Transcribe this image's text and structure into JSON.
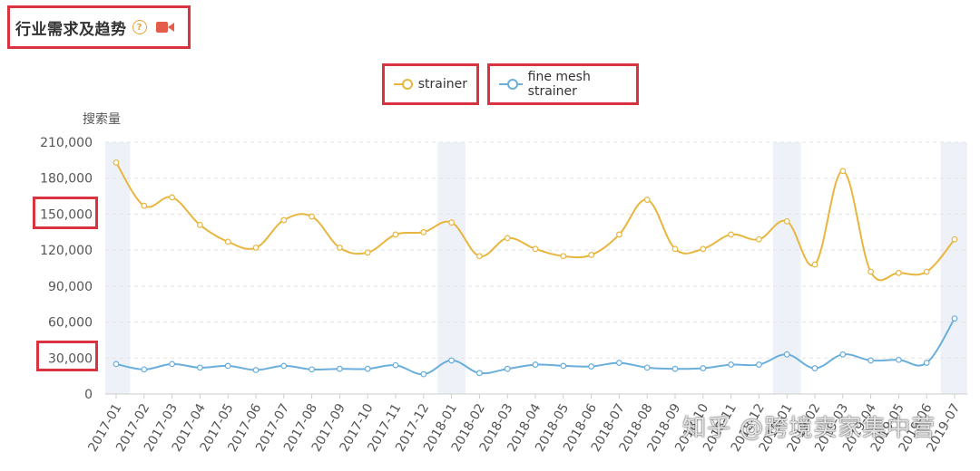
{
  "header": {
    "title": "行业需求及趋势",
    "help_icon": "question-circle-icon",
    "video_icon": "video-camera-icon"
  },
  "watermark": "知乎 @跨境卖家集中营",
  "chart_data": {
    "type": "line",
    "ylabel": "搜索量",
    "ylim": [
      0,
      210000
    ],
    "yticks": [
      "210,000",
      "180,000",
      "150,000",
      "120,000",
      "90,000",
      "60,000",
      "30,000",
      "0"
    ],
    "legend_position": "top-center",
    "grid": true,
    "categories": [
      "2017-01",
      "2017-02",
      "2017-03",
      "2017-04",
      "2017-05",
      "2017-06",
      "2017-07",
      "2017-08",
      "2017-09",
      "2017-10",
      "2017-11",
      "2017-12",
      "2018-01",
      "2018-02",
      "2018-03",
      "2018-04",
      "2018-05",
      "2018-06",
      "2018-07",
      "2018-08",
      "2018-09",
      "2018-10",
      "2018-11",
      "2018-12",
      "2019-01",
      "2019-02",
      "2019-03",
      "2019-04",
      "2019-05",
      "2019-06",
      "2019-07"
    ],
    "shaded_categories": [
      0,
      12,
      24,
      30
    ],
    "series": [
      {
        "name": "strainer",
        "color": "#e8b63e",
        "values": [
          193000,
          157000,
          164000,
          141000,
          127000,
          122000,
          145000,
          148000,
          122000,
          118000,
          133000,
          135000,
          143000,
          115000,
          130000,
          121000,
          115000,
          116000,
          133000,
          162000,
          121000,
          121000,
          133000,
          129000,
          144000,
          108000,
          186000,
          102000,
          101000,
          102000,
          129000
        ]
      },
      {
        "name": "fine mesh strainer",
        "color": "#6aaedc",
        "values": [
          25000,
          20500,
          25000,
          22000,
          23500,
          20000,
          23500,
          20500,
          21000,
          21000,
          24000,
          16500,
          28000,
          17500,
          21000,
          24500,
          23500,
          23000,
          26000,
          22000,
          21000,
          21500,
          24500,
          24500,
          33000,
          21500,
          33000,
          28000,
          28500,
          26000,
          63000
        ]
      }
    ]
  }
}
